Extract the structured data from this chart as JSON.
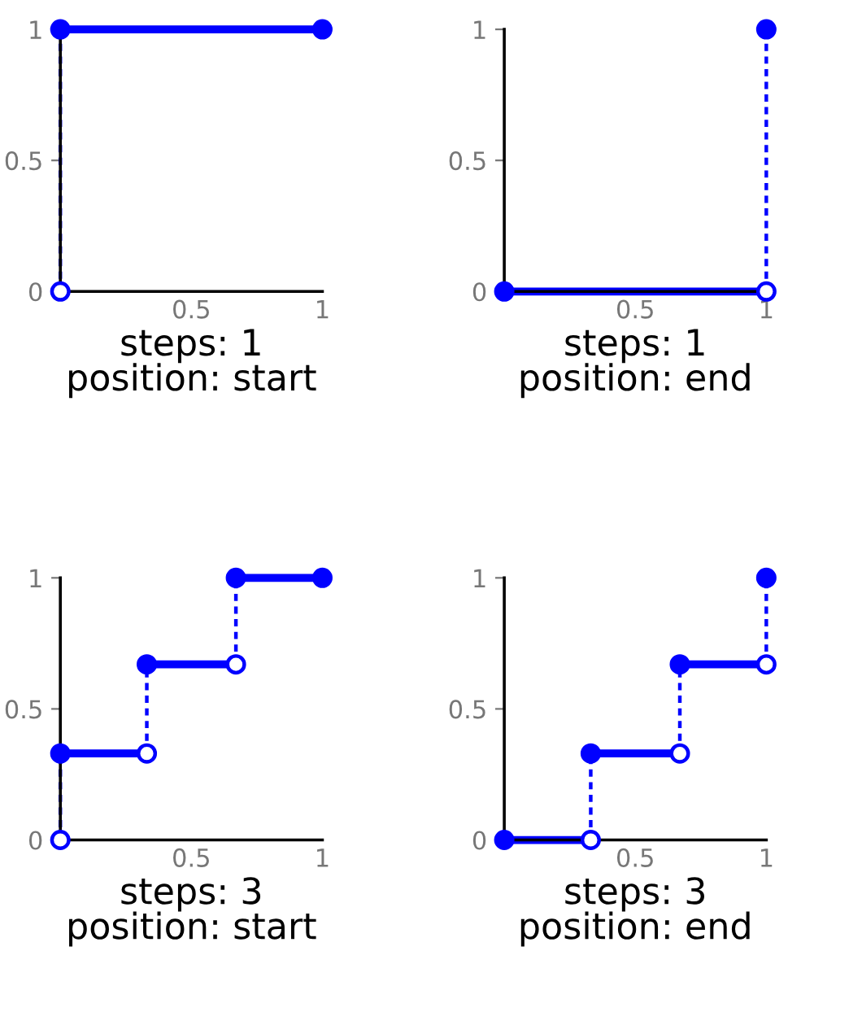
{
  "chart_data": [
    {
      "type": "line",
      "xlabel": "steps: 1\nposition: start",
      "xlim": [
        0,
        1
      ],
      "ylim": [
        0,
        1
      ],
      "xticks": [
        0.5,
        1
      ],
      "yticks": [
        0,
        0.5,
        1
      ],
      "series": [
        {
          "color": "#0000ff",
          "line_style": "solid",
          "x": [
            0,
            1
          ],
          "values": [
            1,
            1
          ]
        },
        {
          "color": "#0000ff",
          "line_style": "dotted",
          "x": [
            0,
            0
          ],
          "values": [
            0,
            1
          ]
        },
        {
          "type": "scatter",
          "marker": "circle",
          "color": "#0000ff",
          "x": [
            0,
            1
          ],
          "values": [
            1,
            1
          ]
        },
        {
          "type": "scatter",
          "marker": "circle",
          "color": "#ffffff",
          "x": [
            0
          ],
          "values": [
            0
          ]
        }
      ]
    },
    {
      "type": "line",
      "xlabel": "steps: 1\nposition: end",
      "xlim": [
        0,
        1
      ],
      "ylim": [
        0,
        1
      ],
      "xticks": [
        0.5,
        1
      ],
      "yticks": [
        0,
        0.5,
        1
      ],
      "series": [
        {
          "color": "#0000ff",
          "line_style": "solid",
          "x": [
            0,
            1
          ],
          "values": [
            0,
            0
          ]
        },
        {
          "color": "#0000ff",
          "line_style": "dotted",
          "x": [
            1,
            1
          ],
          "values": [
            0,
            1
          ]
        },
        {
          "type": "scatter",
          "marker": "circle",
          "color": "#0000ff",
          "x": [
            0,
            1
          ],
          "values": [
            0,
            1
          ]
        },
        {
          "type": "scatter",
          "marker": "circle",
          "color": "#ffffff",
          "x": [
            1
          ],
          "values": [
            0
          ]
        }
      ]
    },
    {
      "type": "line",
      "xlabel": "steps: 3\nposition: start",
      "xlim": [
        0,
        1
      ],
      "ylim": [
        0,
        1
      ],
      "xticks": [
        0.5,
        1
      ],
      "yticks": [
        0,
        0.5,
        1
      ],
      "series": [
        {
          "color": "#0000ff",
          "line_style": "solid",
          "x": [
            0,
            0.33
          ],
          "values": [
            0.33,
            0.33
          ]
        },
        {
          "color": "#0000ff",
          "line_style": "solid",
          "x": [
            0.33,
            0.67
          ],
          "values": [
            0.67,
            0.67
          ]
        },
        {
          "color": "#0000ff",
          "line_style": "solid",
          "x": [
            0.67,
            1
          ],
          "values": [
            1,
            1
          ]
        },
        {
          "color": "#0000ff",
          "line_style": "dotted",
          "x": [
            0,
            0
          ],
          "values": [
            0,
            0.33
          ]
        },
        {
          "color": "#0000ff",
          "line_style": "dotted",
          "x": [
            0.33,
            0.33
          ],
          "values": [
            0.33,
            0.67
          ]
        },
        {
          "color": "#0000ff",
          "line_style": "dotted",
          "x": [
            0.67,
            0.67
          ],
          "values": [
            0.67,
            1
          ]
        },
        {
          "type": "scatter",
          "marker": "circle",
          "color": "#0000ff",
          "x": [
            0,
            0.33,
            0.67,
            1
          ],
          "values": [
            0.33,
            0.67,
            1,
            1
          ]
        },
        {
          "type": "scatter",
          "marker": "circle",
          "color": "#ffffff",
          "x": [
            0,
            0.33,
            0.67
          ],
          "values": [
            0,
            0.33,
            0.67
          ]
        }
      ]
    },
    {
      "type": "line",
      "xlabel": "steps: 3\nposition: end",
      "xlim": [
        0,
        1
      ],
      "ylim": [
        0,
        1
      ],
      "xticks": [
        0.5,
        1
      ],
      "yticks": [
        0,
        0.5,
        1
      ],
      "series": [
        {
          "color": "#0000ff",
          "line_style": "solid",
          "x": [
            0,
            0.33
          ],
          "values": [
            0,
            0
          ]
        },
        {
          "color": "#0000ff",
          "line_style": "solid",
          "x": [
            0.33,
            0.67
          ],
          "values": [
            0.33,
            0.33
          ]
        },
        {
          "color": "#0000ff",
          "line_style": "solid",
          "x": [
            0.67,
            1
          ],
          "values": [
            0.67,
            0.67
          ]
        },
        {
          "color": "#0000ff",
          "line_style": "dotted",
          "x": [
            0.33,
            0.33
          ],
          "values": [
            0,
            0.33
          ]
        },
        {
          "color": "#0000ff",
          "line_style": "dotted",
          "x": [
            0.67,
            0.67
          ],
          "values": [
            0.33,
            0.67
          ]
        },
        {
          "color": "#0000ff",
          "line_style": "dotted",
          "x": [
            1,
            1
          ],
          "values": [
            0.67,
            1
          ]
        },
        {
          "type": "scatter",
          "marker": "circle",
          "color": "#0000ff",
          "x": [
            0,
            0.33,
            0.67,
            1
          ],
          "values": [
            0,
            0.33,
            0.67,
            1
          ]
        },
        {
          "type": "scatter",
          "marker": "circle",
          "color": "#ffffff",
          "x": [
            0.33,
            0.67,
            1
          ],
          "values": [
            0,
            0.33,
            0.67
          ]
        }
      ]
    }
  ]
}
